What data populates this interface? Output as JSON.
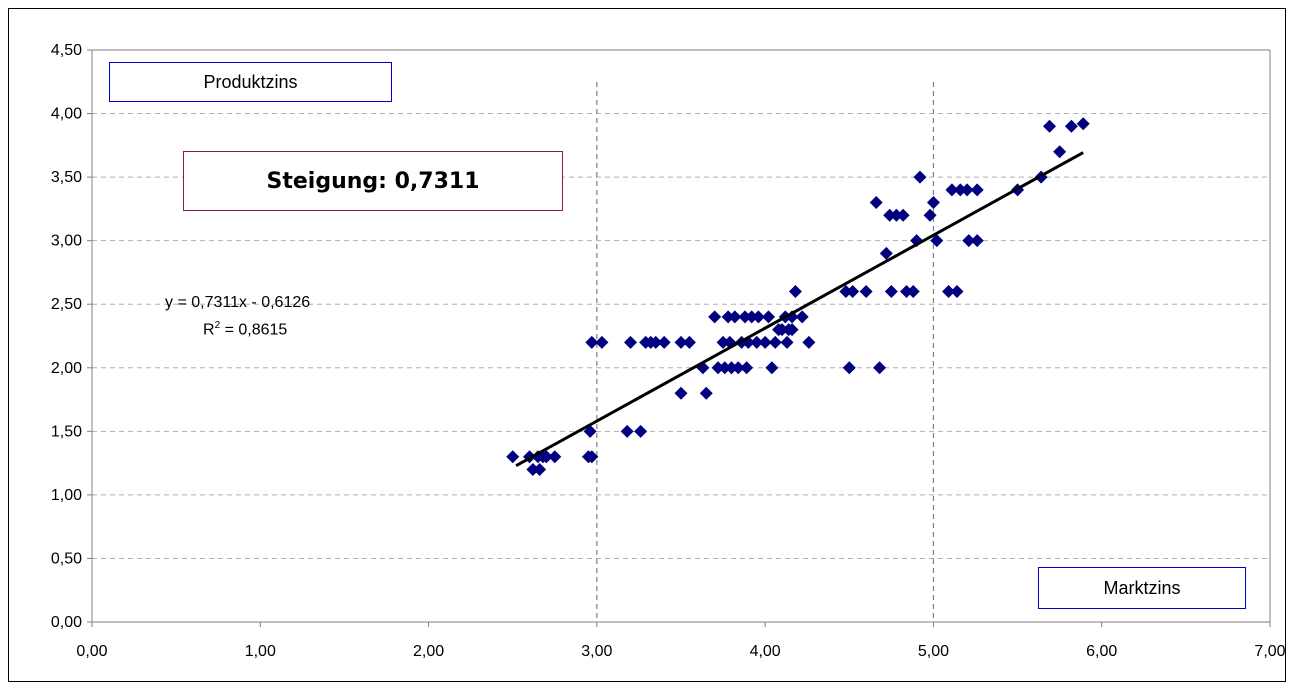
{
  "chart_data": {
    "type": "scatter",
    "title": "",
    "xlabel": "Marktzins",
    "ylabel": "Produktzins",
    "xlim": [
      0,
      7
    ],
    "ylim": [
      0,
      4.5
    ],
    "x_ticks": [
      "0,00",
      "1,00",
      "2,00",
      "3,00",
      "4,00",
      "5,00",
      "6,00",
      "7,00"
    ],
    "y_ticks": [
      "0,00",
      "0,50",
      "1,00",
      "1,50",
      "2,00",
      "2,50",
      "3,00",
      "3,50",
      "4,00",
      "4,50"
    ],
    "grid": "horizontal dashed",
    "reference_lines_x": [
      3,
      5
    ],
    "annotations": {
      "slope_box": "Steigung: 0,7311",
      "equation": "y = 0,7311x - 0,6126",
      "r2_prefix": "R",
      "r2_sup": "2",
      "r2_suffix": " = 0,8615"
    },
    "trendline": {
      "slope": 0.7311,
      "intercept": -0.6126,
      "x_range": [
        2.52,
        5.89
      ]
    },
    "series": [
      {
        "marker": "diamond",
        "color": "#000080",
        "points": [
          [
            2.5,
            1.3
          ],
          [
            2.6,
            1.3
          ],
          [
            2.62,
            1.2
          ],
          [
            2.65,
            1.3
          ],
          [
            2.66,
            1.2
          ],
          [
            2.68,
            1.3
          ],
          [
            2.7,
            1.3
          ],
          [
            2.75,
            1.3
          ],
          [
            2.95,
            1.3
          ],
          [
            2.96,
            1.5
          ],
          [
            2.97,
            1.3
          ],
          [
            2.97,
            2.2
          ],
          [
            3.03,
            2.2
          ],
          [
            3.18,
            1.5
          ],
          [
            3.2,
            2.2
          ],
          [
            3.26,
            1.5
          ],
          [
            3.29,
            2.2
          ],
          [
            3.32,
            2.2
          ],
          [
            3.35,
            2.2
          ],
          [
            3.4,
            2.2
          ],
          [
            3.5,
            1.8
          ],
          [
            3.5,
            2.2
          ],
          [
            3.55,
            2.2
          ],
          [
            3.63,
            2.0
          ],
          [
            3.65,
            1.8
          ],
          [
            3.7,
            2.4
          ],
          [
            3.72,
            2.0
          ],
          [
            3.75,
            2.2
          ],
          [
            3.76,
            2.0
          ],
          [
            3.78,
            2.4
          ],
          [
            3.79,
            2.2
          ],
          [
            3.8,
            2.0
          ],
          [
            3.82,
            2.4
          ],
          [
            3.84,
            2.0
          ],
          [
            3.86,
            2.2
          ],
          [
            3.88,
            2.4
          ],
          [
            3.89,
            2.0
          ],
          [
            3.9,
            2.2
          ],
          [
            3.92,
            2.4
          ],
          [
            3.95,
            2.2
          ],
          [
            3.96,
            2.4
          ],
          [
            4.0,
            2.2
          ],
          [
            4.02,
            2.4
          ],
          [
            4.04,
            2.0
          ],
          [
            4.06,
            2.2
          ],
          [
            4.08,
            2.3
          ],
          [
            4.1,
            2.3
          ],
          [
            4.12,
            2.4
          ],
          [
            4.13,
            2.2
          ],
          [
            4.14,
            2.3
          ],
          [
            4.16,
            2.4
          ],
          [
            4.16,
            2.3
          ],
          [
            4.18,
            2.6
          ],
          [
            4.22,
            2.4
          ],
          [
            4.26,
            2.2
          ],
          [
            4.48,
            2.6
          ],
          [
            4.5,
            2.0
          ],
          [
            4.52,
            2.6
          ],
          [
            4.6,
            2.6
          ],
          [
            4.66,
            3.3
          ],
          [
            4.68,
            2.0
          ],
          [
            4.72,
            2.9
          ],
          [
            4.74,
            3.2
          ],
          [
            4.75,
            2.6
          ],
          [
            4.78,
            3.2
          ],
          [
            4.82,
            3.2
          ],
          [
            4.84,
            2.6
          ],
          [
            4.88,
            2.6
          ],
          [
            4.9,
            3.0
          ],
          [
            4.92,
            3.5
          ],
          [
            4.98,
            3.2
          ],
          [
            5.0,
            3.3
          ],
          [
            5.02,
            3.0
          ],
          [
            5.09,
            2.6
          ],
          [
            5.11,
            3.4
          ],
          [
            5.14,
            2.6
          ],
          [
            5.16,
            3.4
          ],
          [
            5.2,
            3.4
          ],
          [
            5.21,
            3.0
          ],
          [
            5.26,
            3.0
          ],
          [
            5.26,
            3.4
          ],
          [
            5.5,
            3.4
          ],
          [
            5.64,
            3.5
          ],
          [
            5.69,
            3.9
          ],
          [
            5.75,
            3.7
          ],
          [
            5.82,
            3.9
          ],
          [
            5.89,
            3.92
          ]
        ]
      }
    ]
  },
  "colors": {
    "marker": "#000080",
    "trendline": "#000000",
    "grid": "#b0b0b0",
    "ref_line": "#808080",
    "label_box_border": "#0000cc",
    "slope_box_border": "#8b1a4a"
  }
}
